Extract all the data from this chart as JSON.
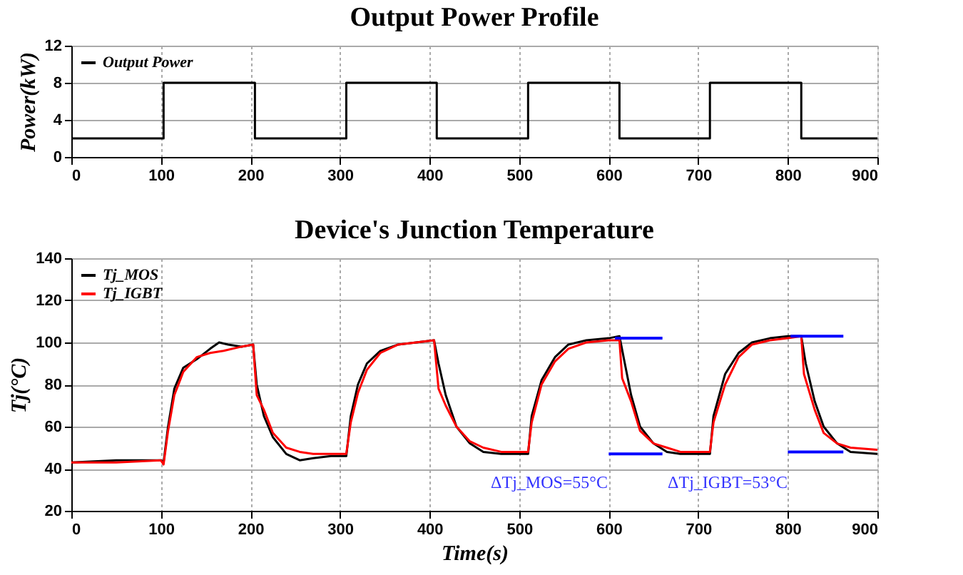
{
  "chart_data": [
    {
      "type": "step",
      "title": "Output Power Profile",
      "ylabel": "Power(kW)",
      "xlim": [
        0,
        900
      ],
      "xticks": [
        0,
        100,
        200,
        300,
        400,
        500,
        600,
        700,
        800,
        900
      ],
      "ylim": [
        0,
        12
      ],
      "yticks": [
        0,
        4,
        8,
        12
      ],
      "grid": true,
      "legend": "top left",
      "series": [
        {
          "name": "Output Power",
          "color": "#000000",
          "x": [
            0,
            103,
            205,
            307,
            408,
            510,
            612,
            713,
            815,
            900
          ],
          "values": [
            2,
            8,
            2,
            8,
            2,
            8,
            2,
            8,
            2,
            2
          ]
        }
      ]
    },
    {
      "type": "line",
      "title": "Device's Junction Temperature",
      "xlabel": "Time(s)",
      "ylabel": "Tj(°C)",
      "xlim": [
        0,
        900
      ],
      "xticks": [
        0,
        100,
        200,
        300,
        400,
        500,
        600,
        700,
        800,
        900
      ],
      "ylim": [
        20,
        140
      ],
      "yticks": [
        20,
        40,
        60,
        80,
        100,
        120,
        140
      ],
      "grid": true,
      "legend": "top left",
      "annotations": [
        "ΔTj_MOS=55°C",
        "ΔTj_IGBT=53°C"
      ],
      "series": [
        {
          "name": "Tj_MOS",
          "color": "#000000",
          "x": [
            0,
            50,
            100,
            103,
            108,
            115,
            125,
            140,
            155,
            165,
            175,
            190,
            203,
            207,
            215,
            225,
            240,
            255,
            270,
            290,
            307,
            312,
            320,
            330,
            345,
            365,
            385,
            405,
            410,
            418,
            430,
            445,
            460,
            480,
            510,
            514,
            525,
            540,
            555,
            575,
            600,
            612,
            618,
            625,
            635,
            650,
            665,
            680,
            713,
            717,
            730,
            745,
            760,
            780,
            800,
            815,
            820,
            830,
            840,
            855,
            870,
            900
          ],
          "values": [
            43,
            44,
            44,
            43,
            60,
            78,
            88,
            92,
            97,
            100,
            99,
            98,
            99,
            80,
            65,
            55,
            47,
            44,
            45,
            46,
            46,
            65,
            80,
            90,
            96,
            99,
            100,
            101,
            90,
            75,
            60,
            52,
            48,
            47,
            47,
            65,
            82,
            93,
            99,
            101,
            102,
            103,
            90,
            75,
            60,
            52,
            48,
            47,
            47,
            65,
            85,
            95,
            100,
            102,
            103,
            103,
            90,
            72,
            60,
            52,
            48,
            47
          ]
        },
        {
          "name": "Tj_IGBT",
          "color": "#ff0000",
          "x": [
            0,
            50,
            100,
            103,
            108,
            115,
            125,
            140,
            155,
            170,
            190,
            203,
            207,
            215,
            225,
            240,
            255,
            270,
            290,
            307,
            312,
            320,
            330,
            345,
            365,
            385,
            405,
            410,
            418,
            430,
            445,
            460,
            480,
            510,
            514,
            525,
            540,
            555,
            575,
            600,
            612,
            615,
            625,
            635,
            650,
            665,
            680,
            713,
            717,
            730,
            745,
            760,
            780,
            800,
            815,
            818,
            830,
            840,
            855,
            870,
            900
          ],
          "values": [
            43,
            43,
            44,
            42,
            58,
            75,
            86,
            93,
            95,
            96,
            98,
            99,
            75,
            68,
            57,
            50,
            48,
            47,
            47,
            47,
            62,
            76,
            87,
            95,
            99,
            100,
            101,
            78,
            70,
            60,
            53,
            50,
            48,
            48,
            62,
            80,
            91,
            97,
            100,
            101,
            101,
            83,
            72,
            58,
            52,
            50,
            48,
            48,
            62,
            80,
            93,
            99,
            101,
            102,
            103,
            85,
            68,
            57,
            52,
            50,
            49
          ]
        },
        {
          "color": "#0000ff",
          "x": [
            607,
            660
          ],
          "values": [
            102,
            102
          ]
        },
        {
          "color": "#0000ff",
          "x": [
            600,
            660
          ],
          "values": [
            47,
            47
          ]
        },
        {
          "color": "#0000ff",
          "x": [
            803,
            862
          ],
          "values": [
            103,
            103
          ]
        },
        {
          "color": "#0000ff",
          "x": [
            800,
            862
          ],
          "values": [
            48,
            48
          ]
        }
      ]
    }
  ]
}
